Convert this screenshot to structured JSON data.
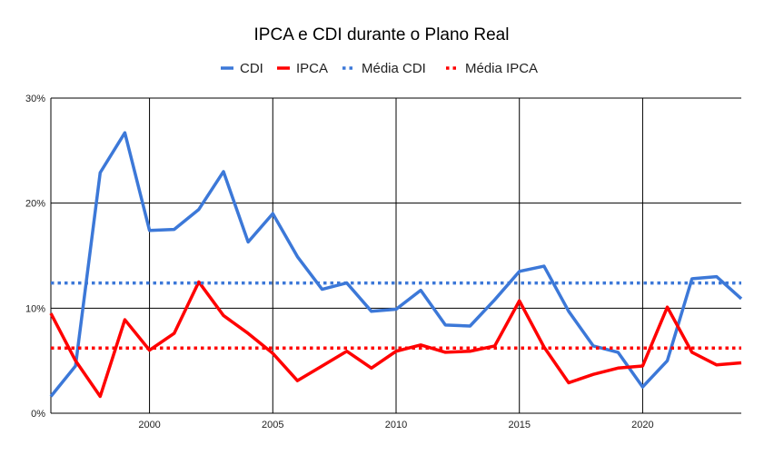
{
  "chart_data": {
    "type": "line",
    "title": "IPCA e CDI durante o Plano Real",
    "xlabel": "",
    "ylabel": "",
    "xlim": [
      1996,
      2024
    ],
    "ylim": [
      0,
      30
    ],
    "x_ticks": [
      "2000",
      "2005",
      "2010",
      "2015",
      "2020"
    ],
    "y_ticks": [
      "0%",
      "10%",
      "20%",
      "30%"
    ],
    "grid": true,
    "legend_position": "top",
    "x": [
      1996,
      1997,
      1998,
      1999,
      2000,
      2001,
      2002,
      2003,
      2004,
      2005,
      2006,
      2007,
      2008,
      2009,
      2010,
      2011,
      2012,
      2013,
      2014,
      2015,
      2016,
      2017,
      2018,
      2019,
      2020,
      2021,
      2022,
      2023,
      2024
    ],
    "series": [
      {
        "name": "CDI",
        "color": "#3c78d8",
        "style": "solid",
        "values": [
          1.6,
          4.5,
          22.9,
          26.7,
          17.4,
          17.5,
          19.4,
          23.0,
          16.3,
          19.0,
          14.9,
          11.8,
          12.4,
          9.7,
          9.9,
          11.7,
          8.4,
          8.3,
          10.8,
          13.5,
          14.0,
          9.7,
          6.4,
          5.8,
          2.5,
          5.0,
          12.8,
          13.0,
          10.9
        ]
      },
      {
        "name": "IPCA",
        "color": "#ff0000",
        "style": "solid",
        "values": [
          9.5,
          5.0,
          1.6,
          8.9,
          6.0,
          7.6,
          12.5,
          9.3,
          7.6,
          5.7,
          3.1,
          4.5,
          5.9,
          4.3,
          5.9,
          6.5,
          5.8,
          5.9,
          6.4,
          10.7,
          6.3,
          2.9,
          3.7,
          4.3,
          4.5,
          10.1,
          5.8,
          4.6,
          4.8
        ]
      },
      {
        "name": "Média CDI",
        "color": "#3c78d8",
        "style": "dotted",
        "value": 12.4
      },
      {
        "name": "Média IPCA",
        "color": "#ff0000",
        "style": "dotted",
        "value": 6.2
      }
    ]
  }
}
